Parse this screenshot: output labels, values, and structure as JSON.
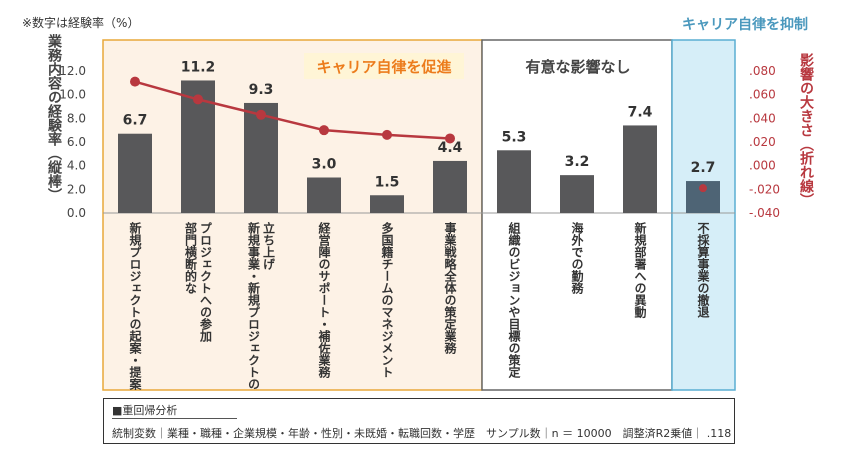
{
  "note": "※数字は経験率（%）",
  "chart_data": {
    "type": "bar",
    "categories": [
      "新規プロジェクトの起案・提案",
      "部門横断的なプロジェクトへの参加",
      "新規事業・新規プロジェクトの立ち上げ",
      "経営陣のサポート・補佐業務",
      "多国籍チームのマネジメント",
      "事業戦略全体の策定業務",
      "組織のビジョンや目標の策定",
      "海外での勤務",
      "新規部署への異動",
      "不採算事業の撤退"
    ],
    "category_labels": [
      [
        "新規プロジェクトの起案・提案"
      ],
      [
        "部門横断的な",
        "プロジェクトへの参加"
      ],
      [
        "新規事業・新規プロジェクトの",
        "立ち上げ"
      ],
      [
        "経営陣のサポート・補佐業務"
      ],
      [
        "多国籍チームのマネジメント"
      ],
      [
        "事業戦略全体の策定業務"
      ],
      [
        "組織のビジョンや目標の策定"
      ],
      [
        "海外での勤務"
      ],
      [
        "新規部署への異動"
      ],
      [
        "不採算事業の撤退"
      ]
    ],
    "values": [
      6.7,
      11.2,
      9.3,
      3.0,
      1.5,
      4.4,
      5.3,
      3.2,
      7.4,
      2.7
    ],
    "value_labels": [
      "6.7",
      "11.2",
      "9.3",
      "3.0",
      "1.5",
      "4.4",
      "5.3",
      "3.2",
      "7.4",
      "2.7"
    ],
    "line_values": [
      0.071,
      0.056,
      0.043,
      0.03,
      0.026,
      0.023,
      null,
      null,
      null,
      -0.019
    ],
    "ylabel": "業務内容の経験率（縦棒）",
    "y2label": "影響の大きさ（折れ線）",
    "ylim": [
      0,
      12
    ],
    "y2lim": [
      -0.04,
      0.08
    ],
    "yticks": [
      "0.0",
      "2.0",
      "4.0",
      "6.0",
      "8.0",
      "10.0",
      "12.0"
    ],
    "y2ticks": [
      "-.040",
      "-.020",
      ".000",
      ".020",
      ".040",
      ".060",
      ".080"
    ],
    "groups": [
      {
        "label": "キャリア自律を促進",
        "start": 0,
        "end": 5
      },
      {
        "label": "有意な影響なし",
        "start": 6,
        "end": 8
      },
      {
        "label": "キャリア自律を抑制",
        "start": 9,
        "end": 9
      }
    ],
    "colors": {
      "bar": "#58585a",
      "bar_suppress": "#4e6475",
      "line": "#b8383f",
      "promote_bg": "#fdf2e6",
      "promote_border": "#e8a83a",
      "promote_text": "#ec7c1c",
      "neutral_border": "#666666",
      "suppress_bg": "#d6eef8",
      "suppress_border": "#5aaed2",
      "suppress_text": "#4a98bd"
    }
  },
  "footer": {
    "title": "■重回帰分析",
    "controls": "統制変数｜業種・職種・企業規模・年齢・性別・未既婚・転職回数・学歴　サンプル数｜n ＝ 10000　調整済R2乗値｜ .118"
  }
}
